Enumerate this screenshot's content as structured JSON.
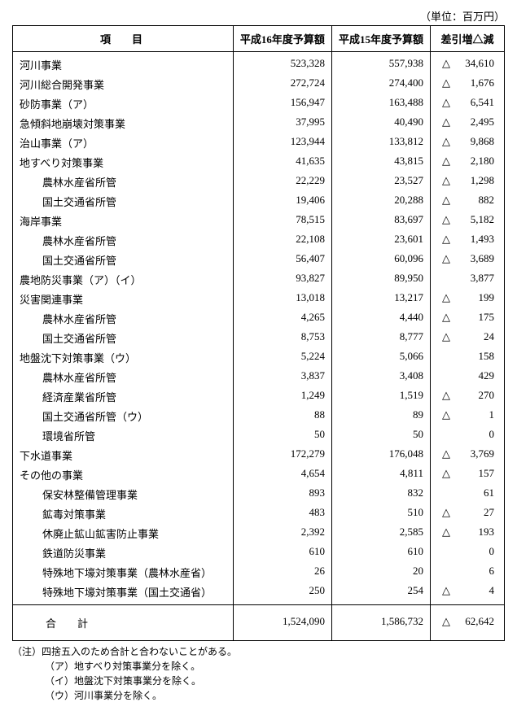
{
  "unit_label": "（単位：百万円）",
  "headers": {
    "item": "項目",
    "h16": "平成16年度予算額",
    "h15": "平成15年度予算額",
    "diff": "差引増△減"
  },
  "rows": [
    {
      "label": "河川事業",
      "indent": 0,
      "h16": "523,328",
      "h15": "557,938",
      "tri": true,
      "diff": "34,610"
    },
    {
      "label": "河川総合開発事業",
      "indent": 0,
      "h16": "272,724",
      "h15": "274,400",
      "tri": true,
      "diff": "1,676"
    },
    {
      "label": "砂防事業（ア）",
      "indent": 0,
      "h16": "156,947",
      "h15": "163,488",
      "tri": true,
      "diff": "6,541"
    },
    {
      "label": "急傾斜地崩壊対策事業",
      "indent": 0,
      "h16": "37,995",
      "h15": "40,490",
      "tri": true,
      "diff": "2,495"
    },
    {
      "label": "治山事業（ア）",
      "indent": 0,
      "h16": "123,944",
      "h15": "133,812",
      "tri": true,
      "diff": "9,868"
    },
    {
      "label": "地すべり対策事業",
      "indent": 0,
      "h16": "41,635",
      "h15": "43,815",
      "tri": true,
      "diff": "2,180"
    },
    {
      "label": "農林水産省所管",
      "indent": 1,
      "h16": "22,229",
      "h15": "23,527",
      "tri": true,
      "diff": "1,298"
    },
    {
      "label": "国土交通省所管",
      "indent": 1,
      "h16": "19,406",
      "h15": "20,288",
      "tri": true,
      "diff": "882"
    },
    {
      "label": "海岸事業",
      "indent": 0,
      "h16": "78,515",
      "h15": "83,697",
      "tri": true,
      "diff": "5,182"
    },
    {
      "label": "農林水産省所管",
      "indent": 1,
      "h16": "22,108",
      "h15": "23,601",
      "tri": true,
      "diff": "1,493"
    },
    {
      "label": "国土交通省所管",
      "indent": 1,
      "h16": "56,407",
      "h15": "60,096",
      "tri": true,
      "diff": "3,689"
    },
    {
      "label": "農地防災事業（ア）（イ）",
      "indent": 0,
      "h16": "93,827",
      "h15": "89,950",
      "tri": false,
      "diff": "3,877"
    },
    {
      "label": "災害関連事業",
      "indent": 0,
      "h16": "13,018",
      "h15": "13,217",
      "tri": true,
      "diff": "199"
    },
    {
      "label": "農林水産省所管",
      "indent": 1,
      "h16": "4,265",
      "h15": "4,440",
      "tri": true,
      "diff": "175"
    },
    {
      "label": "国土交通省所管",
      "indent": 1,
      "h16": "8,753",
      "h15": "8,777",
      "tri": true,
      "diff": "24"
    },
    {
      "label": "地盤沈下対策事業（ウ）",
      "indent": 0,
      "h16": "5,224",
      "h15": "5,066",
      "tri": false,
      "diff": "158"
    },
    {
      "label": "農林水産省所管",
      "indent": 1,
      "h16": "3,837",
      "h15": "3,408",
      "tri": false,
      "diff": "429"
    },
    {
      "label": "経済産業省所管",
      "indent": 1,
      "h16": "1,249",
      "h15": "1,519",
      "tri": true,
      "diff": "270"
    },
    {
      "label": "国土交通省所管（ウ）",
      "indent": 1,
      "h16": "88",
      "h15": "89",
      "tri": true,
      "diff": "1"
    },
    {
      "label": "環境省所管",
      "indent": 1,
      "h16": "50",
      "h15": "50",
      "tri": false,
      "diff": "0"
    },
    {
      "label": "下水道事業",
      "indent": 0,
      "h16": "172,279",
      "h15": "176,048",
      "tri": true,
      "diff": "3,769"
    },
    {
      "label": "その他の事業",
      "indent": 0,
      "h16": "4,654",
      "h15": "4,811",
      "tri": true,
      "diff": "157"
    },
    {
      "label": "保安林整備管理事業",
      "indent": 1,
      "h16": "893",
      "h15": "832",
      "tri": false,
      "diff": "61"
    },
    {
      "label": "鉱毒対策事業",
      "indent": 1,
      "h16": "483",
      "h15": "510",
      "tri": true,
      "diff": "27"
    },
    {
      "label": "休廃止鉱山鉱害防止事業",
      "indent": 1,
      "h16": "2,392",
      "h15": "2,585",
      "tri": true,
      "diff": "193"
    },
    {
      "label": "鉄道防災事業",
      "indent": 1,
      "h16": "610",
      "h15": "610",
      "tri": false,
      "diff": "0"
    },
    {
      "label": "特殊地下壕対策事業（農林水産省）",
      "indent": 1,
      "h16": "26",
      "h15": "20",
      "tri": false,
      "diff": "6"
    },
    {
      "label": "特殊地下壕対策事業（国土交通省）",
      "indent": 1,
      "h16": "250",
      "h15": "254",
      "tri": true,
      "diff": "4"
    }
  ],
  "total": {
    "label": "合計",
    "h16": "1,524,090",
    "h15": "1,586,732",
    "tri": true,
    "diff": "62,642"
  },
  "notes": {
    "prefix": "（注）",
    "main": "四捨五入のため合計と合わないことがある。",
    "sub": [
      "（ア）地すべり対策事業分を除く。",
      "（イ）地盤沈下対策事業分を除く。",
      "（ウ）河川事業分を除く。"
    ]
  }
}
